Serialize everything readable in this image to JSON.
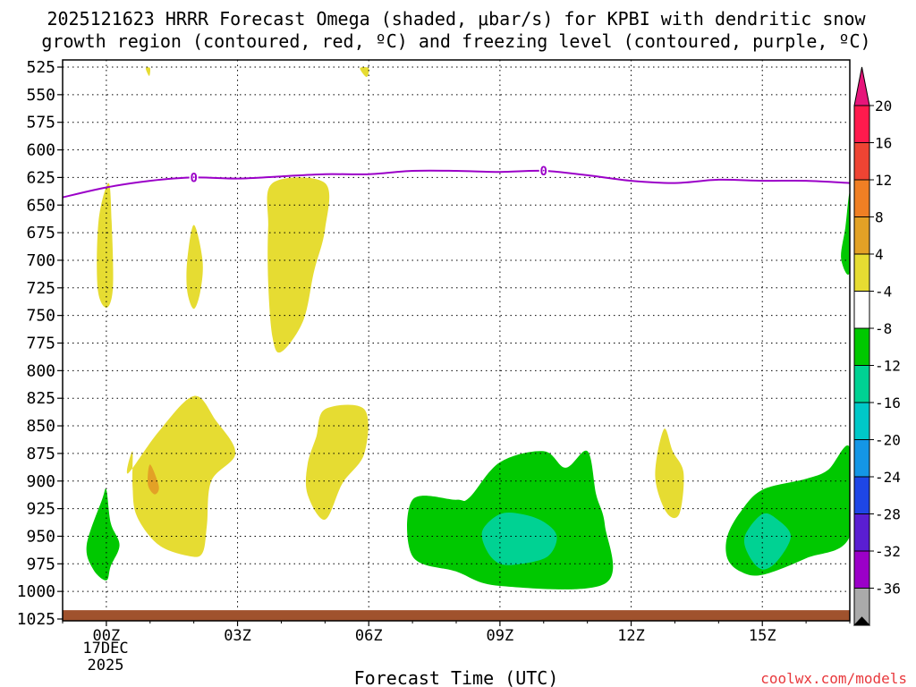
{
  "chart_data": {
    "type": "time-height cross section",
    "title_line1": "2025121623 HRRR Forecast Omega (shaded, μbar/s) for KPBI with dendritic snow",
    "title_line2": "growth region (contoured, red, ºC) and freezing level (contoured, purple, ºC)",
    "xlabel": "Forecast Time (UTC)",
    "credit": "coolwx.com/models",
    "x_range_hours": [
      -1,
      17
    ],
    "y_range_mb": [
      1025,
      525
    ],
    "y_ticks": [
      "525",
      "550",
      "575",
      "600",
      "625",
      "650",
      "675",
      "700",
      "725",
      "750",
      "775",
      "800",
      "825",
      "850",
      "875",
      "900",
      "925",
      "950",
      "975",
      "1000",
      "1025"
    ],
    "x_ticks": [
      {
        "hour": 0,
        "label": "00Z"
      },
      {
        "hour": 3,
        "label": "03Z"
      },
      {
        "hour": 6,
        "label": "06Z"
      },
      {
        "hour": 9,
        "label": "09Z"
      },
      {
        "hour": 12,
        "label": "12Z"
      },
      {
        "hour": 15,
        "label": "15Z"
      }
    ],
    "date_label_line1": "17DEC",
    "date_label_line2": "2025",
    "freezing_level": {
      "label": "0",
      "color": "#9b00c8",
      "points": [
        [
          -1,
          643
        ],
        [
          0,
          634
        ],
        [
          1,
          628
        ],
        [
          2,
          625
        ],
        [
          3,
          626
        ],
        [
          4,
          624
        ],
        [
          5,
          622
        ],
        [
          6,
          622
        ],
        [
          7,
          619
        ],
        [
          8,
          619
        ],
        [
          9,
          620
        ],
        [
          10,
          619
        ],
        [
          11,
          623
        ],
        [
          12,
          628
        ],
        [
          13,
          630
        ],
        [
          14,
          627
        ],
        [
          15,
          628
        ],
        [
          16,
          628
        ],
        [
          17,
          630
        ]
      ]
    },
    "omega_regions": [
      {
        "level": "4 to 8",
        "color": "#e6dc32",
        "points": [
          [
            0.9,
            526
          ],
          [
            1.0,
            526
          ],
          [
            0.98,
            533
          ]
        ]
      },
      {
        "level": "4 to 8",
        "color": "#e6dc32",
        "points": [
          [
            5.8,
            526
          ],
          [
            6.0,
            526
          ],
          [
            5.95,
            534
          ]
        ]
      },
      {
        "level": "4 to 8",
        "color": "#e6dc32",
        "points": [
          [
            0.05,
            630
          ],
          [
            0.12,
            665
          ],
          [
            0.15,
            725
          ],
          [
            0.0,
            743
          ],
          [
            -0.2,
            725
          ],
          [
            -0.18,
            665
          ]
        ]
      },
      {
        "level": "4 to 8",
        "color": "#e6dc32",
        "points": [
          [
            2.0,
            668
          ],
          [
            2.2,
            700
          ],
          [
            2.15,
            728
          ],
          [
            2.0,
            744
          ],
          [
            1.85,
            728
          ],
          [
            1.85,
            700
          ]
        ]
      },
      {
        "level": "4 to 8",
        "color": "#e6dc32",
        "points": [
          [
            3.8,
            630
          ],
          [
            5.0,
            630
          ],
          [
            5.0,
            672
          ],
          [
            4.75,
            710
          ],
          [
            4.5,
            755
          ],
          [
            4.0,
            783
          ],
          [
            3.8,
            770
          ],
          [
            3.7,
            720
          ],
          [
            3.7,
            670
          ]
        ]
      },
      {
        "level": "4 to 8",
        "color": "#e6dc32",
        "points": [
          [
            0.5,
            893
          ],
          [
            1.2,
            855
          ],
          [
            2.0,
            823
          ],
          [
            2.5,
            845
          ],
          [
            2.95,
            875
          ],
          [
            2.4,
            900
          ],
          [
            2.3,
            940
          ],
          [
            2.2,
            965
          ],
          [
            1.9,
            968
          ],
          [
            1.2,
            958
          ],
          [
            0.7,
            932
          ],
          [
            0.6,
            905
          ],
          [
            0.6,
            873
          ]
        ]
      },
      {
        "level": "4 to 8",
        "color": "#e6dc32",
        "points": [
          [
            5.0,
            835
          ],
          [
            5.9,
            835
          ],
          [
            5.9,
            875
          ],
          [
            5.4,
            902
          ],
          [
            5.0,
            935
          ],
          [
            4.6,
            912
          ],
          [
            4.6,
            885
          ],
          [
            4.8,
            860
          ]
        ]
      },
      {
        "level": "4 to 8",
        "color": "#e6dc32",
        "points": [
          [
            12.75,
            853
          ],
          [
            12.95,
            873
          ],
          [
            13.2,
            893
          ],
          [
            13.1,
            930
          ],
          [
            12.8,
            928
          ],
          [
            12.55,
            895
          ]
        ]
      },
      {
        "level": "8 to 12",
        "color": "#e3a126",
        "points": [
          [
            1.0,
            885
          ],
          [
            1.2,
            905
          ],
          [
            1.1,
            912
          ],
          [
            0.95,
            903
          ]
        ]
      },
      {
        "level": "-8 to -4",
        "color": "#00c800",
        "points": [
          [
            -0.45,
            958
          ],
          [
            -0.1,
            917
          ],
          [
            0.0,
            908
          ],
          [
            0.1,
            938
          ],
          [
            0.3,
            958
          ],
          [
            0.1,
            977
          ],
          [
            0.0,
            990
          ],
          [
            -0.3,
            980
          ]
        ]
      },
      {
        "level": "-8 to -4",
        "color": "#00c800",
        "points": [
          [
            7.0,
            917
          ],
          [
            8.0,
            917
          ],
          [
            8.3,
            915
          ],
          [
            9.0,
            883
          ],
          [
            10.0,
            873
          ],
          [
            10.5,
            888
          ],
          [
            11.0,
            873
          ],
          [
            11.2,
            912
          ],
          [
            11.4,
            940
          ],
          [
            11.4,
            993
          ],
          [
            9.0,
            995
          ],
          [
            8.0,
            982
          ],
          [
            7.0,
            968
          ]
        ]
      },
      {
        "level": "-8 to -4",
        "color": "#00c800",
        "points": [
          [
            14.2,
            950
          ],
          [
            14.5,
            928
          ],
          [
            15.0,
            908
          ],
          [
            16.0,
            898
          ],
          [
            16.5,
            890
          ],
          [
            17.0,
            870
          ],
          [
            17.0,
            950
          ],
          [
            16.0,
            970
          ],
          [
            15.0,
            985
          ],
          [
            14.5,
            982
          ],
          [
            14.2,
            970
          ]
        ]
      },
      {
        "level": "-8 to -4",
        "color": "#00c800",
        "points": [
          [
            16.9,
            670
          ],
          [
            17.0,
            640
          ],
          [
            17.0,
            710
          ],
          [
            16.8,
            698
          ]
        ]
      },
      {
        "level": "-12 to -8",
        "color": "#00d293",
        "points": [
          [
            8.6,
            945
          ],
          [
            9.0,
            930
          ],
          [
            9.5,
            930
          ],
          [
            10.0,
            937
          ],
          [
            10.3,
            950
          ],
          [
            10.1,
            968
          ],
          [
            9.5,
            975
          ],
          [
            9.0,
            975
          ],
          [
            8.7,
            963
          ]
        ]
      },
      {
        "level": "-12 to -8",
        "color": "#00d293",
        "points": [
          [
            14.6,
            950
          ],
          [
            15.0,
            930
          ],
          [
            15.35,
            935
          ],
          [
            15.65,
            950
          ],
          [
            15.35,
            972
          ],
          [
            15.0,
            980
          ],
          [
            14.7,
            968
          ]
        ]
      }
    ],
    "ground": {
      "color": "#a0522d",
      "bottom_mb": 1025,
      "top_mb": 1017
    },
    "colorbar": {
      "labels": [
        "20",
        "16",
        "12",
        "8",
        "4",
        "-4",
        "-8",
        "-12",
        "-16",
        "-20",
        "-24",
        "-28",
        "-32",
        "-36"
      ],
      "colors": [
        "#ff1a4d",
        "#ee4433",
        "#f07f24",
        "#e3a126",
        "#e6dc32",
        "#ffffff",
        "#00c800",
        "#00d293",
        "#00c8c8",
        "#1496e6",
        "#1e46e6",
        "#5a1ed2",
        "#9b00c8",
        "#aaaaaa"
      ],
      "top_cap_color": "#e6157a",
      "bottom_cap_color": "#000000"
    }
  }
}
